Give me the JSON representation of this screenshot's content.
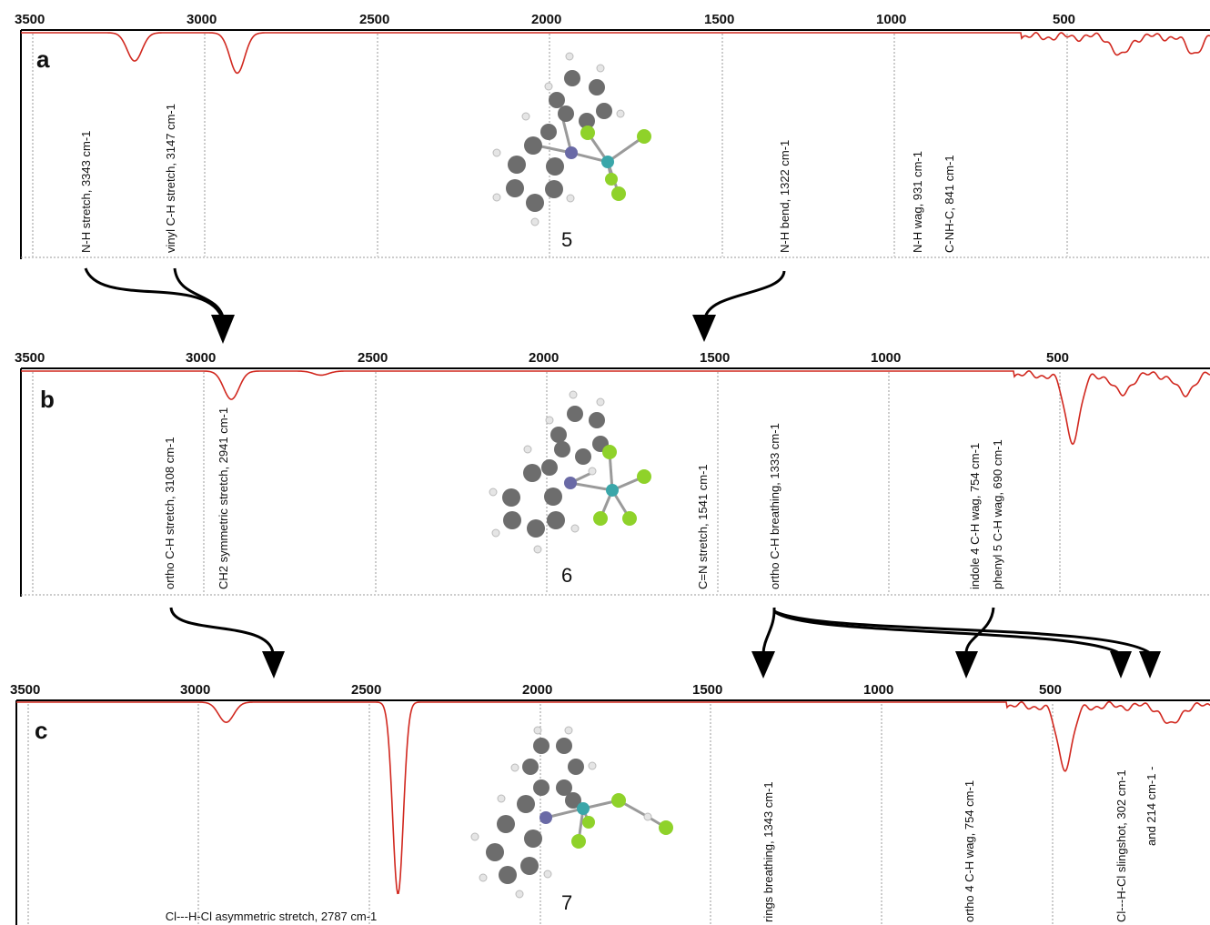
{
  "chart_data": [
    {
      "type": "line",
      "panel_label": "a",
      "compound_number": "5",
      "xlabel": "",
      "ylabel": "",
      "x_reversed": true,
      "xlim": [
        3560,
        1290
      ],
      "ticks": [
        "3500",
        "3000",
        "2500",
        "2000",
        "1500",
        "1000",
        "500"
      ],
      "color": "#d1281f",
      "peaks": [
        {
          "x": 3343,
          "depth": 0.14
        },
        {
          "x": 3147,
          "depth": 0.2
        },
        {
          "x": 1460,
          "depth": 0.1
        },
        {
          "x": 1322,
          "depth": 0.08
        },
        {
          "x": 931,
          "depth": 0.34
        },
        {
          "x": 880,
          "depth": 0.12
        },
        {
          "x": 841,
          "depth": 0.46
        },
        {
          "x": 755,
          "depth": 0.28
        },
        {
          "x": 392,
          "depth": 0.88
        },
        {
          "x": 345,
          "depth": 0.15
        },
        {
          "x": 215,
          "depth": 0.1
        }
      ],
      "annotations": [
        {
          "text": "N-H stretch, 3343 cm-1",
          "x": 3343
        },
        {
          "text": "vinyl C-H stretch, 3147 cm-1",
          "x": 3147
        },
        {
          "text": "N-H bend, 1322 cm-1",
          "x": 1322
        },
        {
          "text": "N-H wag, 931 cm-1",
          "x": 931
        },
        {
          "text": "C-NH-C, 841 cm-1",
          "x": 841
        }
      ]
    },
    {
      "type": "line",
      "panel_label": "b",
      "compound_number": "6",
      "xlabel": "",
      "ylabel": "",
      "x_reversed": true,
      "xlim": [
        3500,
        1285
      ],
      "ticks": [
        "3500",
        "3000",
        "2500",
        "2000",
        "1500",
        "1000",
        "500"
      ],
      "color": "#d1281f",
      "peaks": [
        {
          "x": 3108,
          "depth": 0.14
        },
        {
          "x": 2941,
          "depth": 0.02
        },
        {
          "x": 1541,
          "depth": 0.32
        },
        {
          "x": 1450,
          "depth": 0.1
        },
        {
          "x": 1333,
          "depth": 0.1
        },
        {
          "x": 754,
          "depth": 0.22
        },
        {
          "x": 690,
          "depth": 0.1
        },
        {
          "x": 388,
          "depth": 0.92
        },
        {
          "x": 340,
          "depth": 0.12
        }
      ],
      "annotations": [
        {
          "text": "ortho C-H stretch, 3108 cm-1",
          "x": 3108
        },
        {
          "text": "CH2 symmetric stretch, 2941 cm-1",
          "x": 2941
        },
        {
          "text": "C=N stretch, 1541 cm-1",
          "x": 1541
        },
        {
          "text": "ortho C-H breathing, 1333 cm-1",
          "x": 1333
        },
        {
          "text": "indole 4 C-H wag, 754 cm-1",
          "x": 754
        },
        {
          "text": "phenyl 5 C-H wag, 690 cm-1",
          "x": 690
        }
      ]
    },
    {
      "type": "line",
      "panel_label": "c",
      "compound_number": "7",
      "xlabel": "",
      "ylabel": "",
      "x_reversed": true,
      "xlim": [
        3500,
        1270
      ],
      "ticks": [
        "3500",
        "3000",
        "2500",
        "2000",
        "1500",
        "1000",
        "500"
      ],
      "color": "#d1281f",
      "peaks": [
        {
          "x": 3108,
          "depth": 0.1
        },
        {
          "x": 2787,
          "depth": 0.95
        },
        {
          "x": 1541,
          "depth": 0.3
        },
        {
          "x": 1343,
          "depth": 0.1
        },
        {
          "x": 754,
          "depth": 0.16
        },
        {
          "x": 380,
          "depth": 0.12
        },
        {
          "x": 330,
          "depth": 0.22
        },
        {
          "x": 302,
          "depth": 0.32
        },
        {
          "x": 214,
          "depth": 0.08
        }
      ],
      "annotations": [
        {
          "text": "Cl---H-Cl asymmetric stretch, 2787 cm-1",
          "x": 2787
        },
        {
          "text": "rings breathing, 1343 cm-1",
          "x": 1343
        },
        {
          "text": "ortho 4 C-H wag, 754 cm-1",
          "x": 754
        },
        {
          "text": "Cl---H-Cl slingshot, 302 cm-1",
          "x": 302
        },
        {
          "text": "and 214 cm-1 -",
          "x": 214
        }
      ]
    }
  ]
}
